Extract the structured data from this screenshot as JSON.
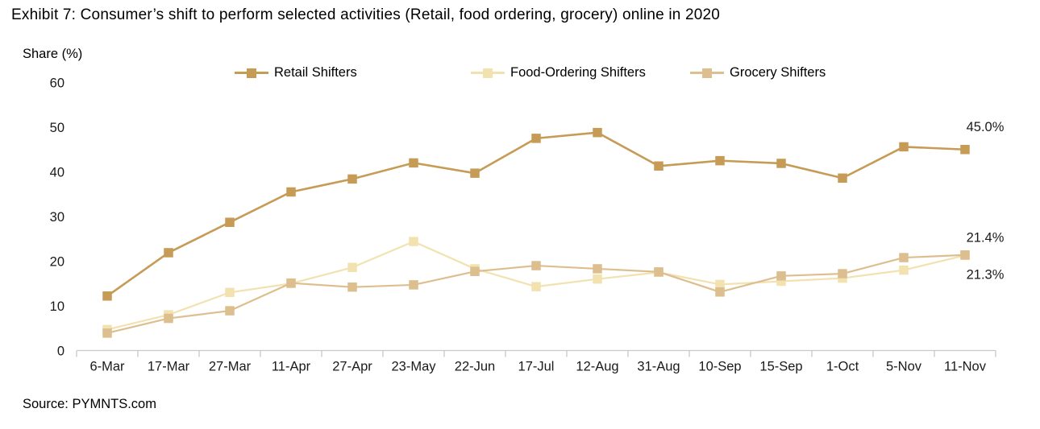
{
  "title": "Exhibit 7: Consumer’s shift to perform selected activities (Retail, food ordering, grocery) online in 2020",
  "y_axis_title": "Share (%)",
  "source": "Source: PYMNTS.com",
  "colors": {
    "retail": "#C69B55",
    "food_ordering": "#F1E2B0",
    "grocery": "#DDBE8F",
    "axis": "#C9C9C9",
    "text": "#000000",
    "background": "#FFFFFF"
  },
  "chart_data": {
    "type": "line",
    "title": "Exhibit 7: Consumer’s shift to perform selected activities (Retail, food ordering, grocery) online in 2020",
    "xlabel": "",
    "ylabel": "Share (%)",
    "ylim": [
      0,
      60
    ],
    "yticks": [
      0,
      10,
      20,
      30,
      40,
      50,
      60
    ],
    "grid": false,
    "marker": "square",
    "legend_position": "top",
    "categories": [
      "6-Mar",
      "17-Mar",
      "27-Mar",
      "11-Apr",
      "27-Apr",
      "23-May",
      "22-Jun",
      "17-Jul",
      "12-Aug",
      "31-Aug",
      "10-Sep",
      "15-Sep",
      "1-Oct",
      "5-Nov",
      "11-Nov"
    ],
    "series": [
      {
        "name": "Retail Shifters",
        "color": "#C69B55",
        "values": [
          12.2,
          21.9,
          28.7,
          35.5,
          38.4,
          42.0,
          39.7,
          47.5,
          48.8,
          41.3,
          42.5,
          41.9,
          38.6,
          45.6,
          45.0
        ],
        "end_label": "45.0%"
      },
      {
        "name": "Food-Ordering Shifters",
        "color": "#F1E2B0",
        "values": [
          4.7,
          8.0,
          13.0,
          15.0,
          18.6,
          24.4,
          18.3,
          14.3,
          16.0,
          17.5,
          14.8,
          15.5,
          16.2,
          18.0,
          21.3
        ],
        "end_label": "21.3%"
      },
      {
        "name": "Grocery Shifters",
        "color": "#DDBE8F",
        "values": [
          3.9,
          7.2,
          8.9,
          15.1,
          14.2,
          14.7,
          17.7,
          19.0,
          18.3,
          17.6,
          13.1,
          16.7,
          17.2,
          20.8,
          21.4
        ],
        "end_label": "21.4%"
      }
    ]
  }
}
